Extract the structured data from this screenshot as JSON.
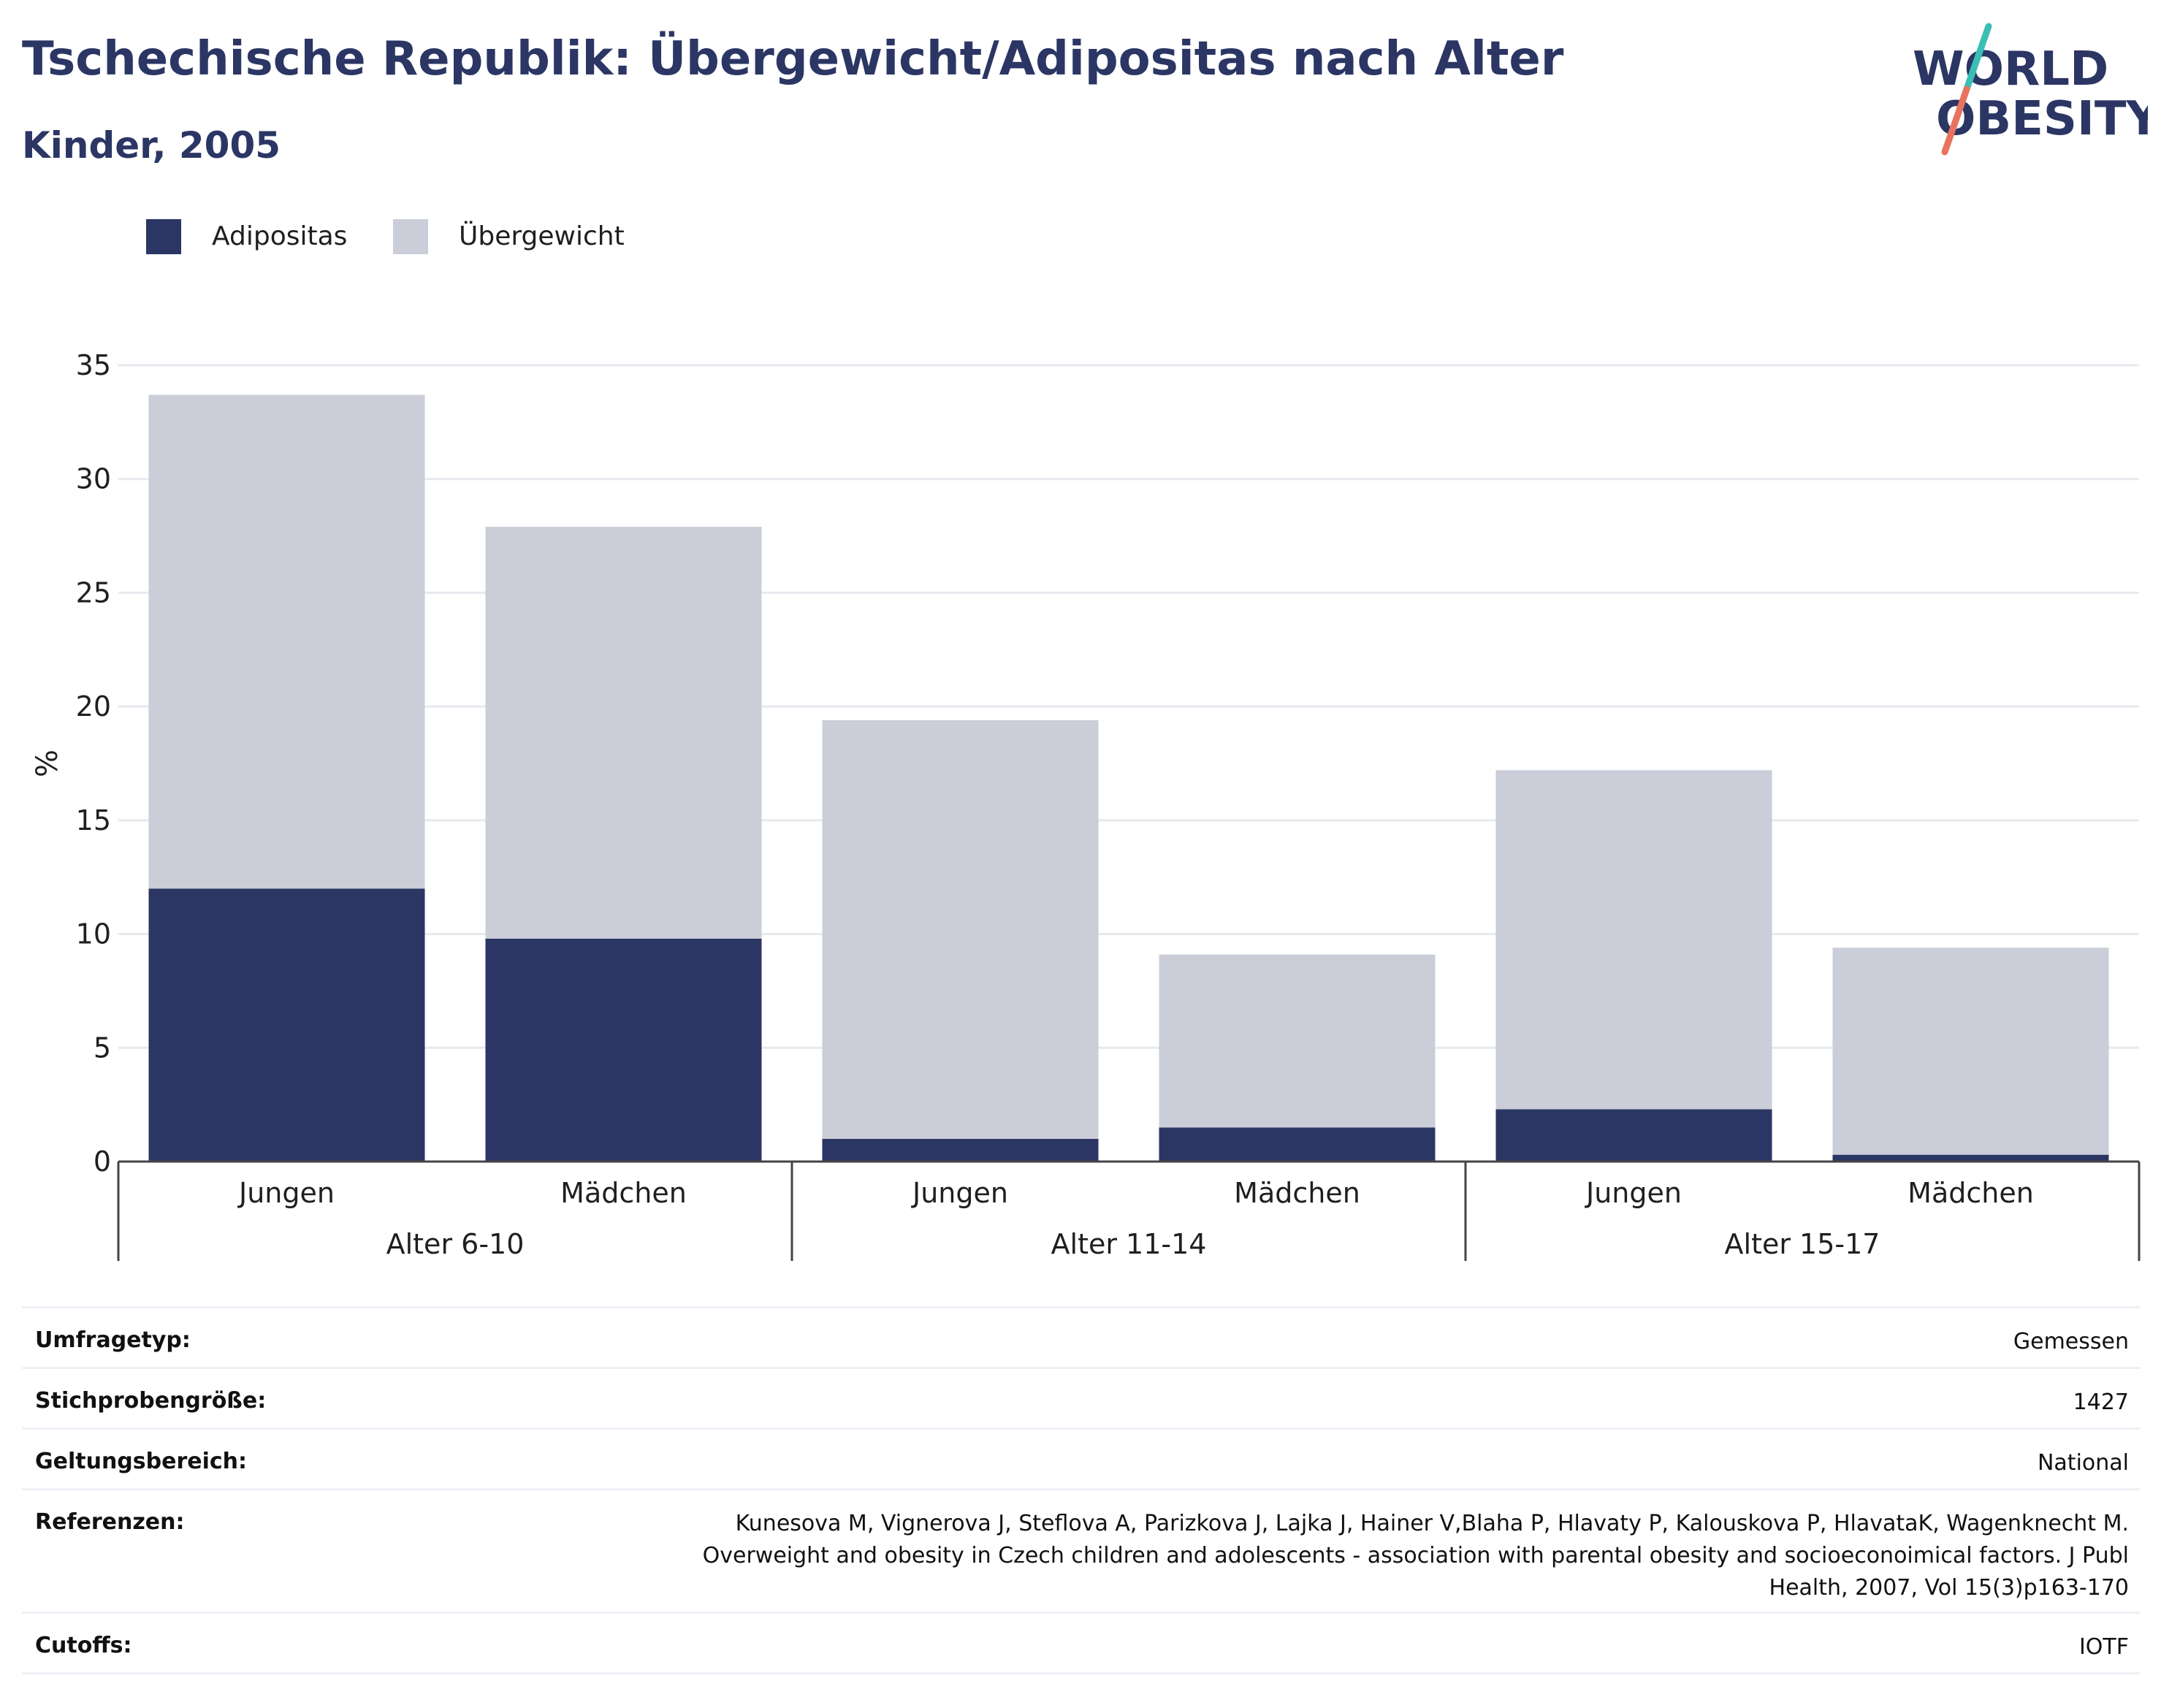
{
  "header": {
    "title": "Tschechische Republik: Übergewicht/Adipositas nach Alter",
    "subtitle": "Kinder, 2005"
  },
  "logo": {
    "line1": "WORLD",
    "line2": "OBESITY",
    "colors": {
      "text": "#2b3664",
      "slash_top": "#3bbfb5",
      "slash_bottom": "#e8735f"
    }
  },
  "legend": [
    {
      "label": "Adipositas",
      "color": "#2b3664"
    },
    {
      "label": "Übergewicht",
      "color": "#cbcdd9"
    }
  ],
  "chart_data": {
    "type": "bar",
    "stacked": true,
    "ylabel": "%",
    "ylim": [
      0,
      35
    ],
    "yticks": [
      0,
      5,
      10,
      15,
      20,
      25,
      30,
      35
    ],
    "grid": true,
    "legend_position": "top-left",
    "groups": [
      "Alter 6-10",
      "Alter 11-14",
      "Alter 15-17"
    ],
    "categories": [
      "Jungen",
      "Mädchen",
      "Jungen",
      "Mädchen",
      "Jungen",
      "Mädchen"
    ],
    "series": [
      {
        "name": "Adipositas",
        "color": "#2b3664",
        "values": [
          12.0,
          9.8,
          1.0,
          1.5,
          2.3,
          0.3
        ]
      },
      {
        "name": "Übergewicht",
        "color": "#cbcdd9",
        "values": [
          21.7,
          18.1,
          18.4,
          7.6,
          14.9,
          9.1
        ]
      }
    ]
  },
  "info": [
    {
      "label": "Umfragetyp:",
      "value": "Gemessen"
    },
    {
      "label": "Stichprobengröße:",
      "value": "1427"
    },
    {
      "label": "Geltungsbereich:",
      "value": "National"
    },
    {
      "label": "Referenzen:",
      "value": "Kunesova M, Vignerova J, Steflova A, Parizkova J, Lajka J, Hainer V,Blaha P, Hlavaty P, Kalouskova P, HlavataK, Wagenknecht M. Overweight and obesity in Czech children and adolescents - association with parental obesity and socioeconoimical factors. J Publ Health, 2007, Vol 15(3)p163-170"
    },
    {
      "label": "Cutoffs:",
      "value": "IOTF"
    }
  ]
}
